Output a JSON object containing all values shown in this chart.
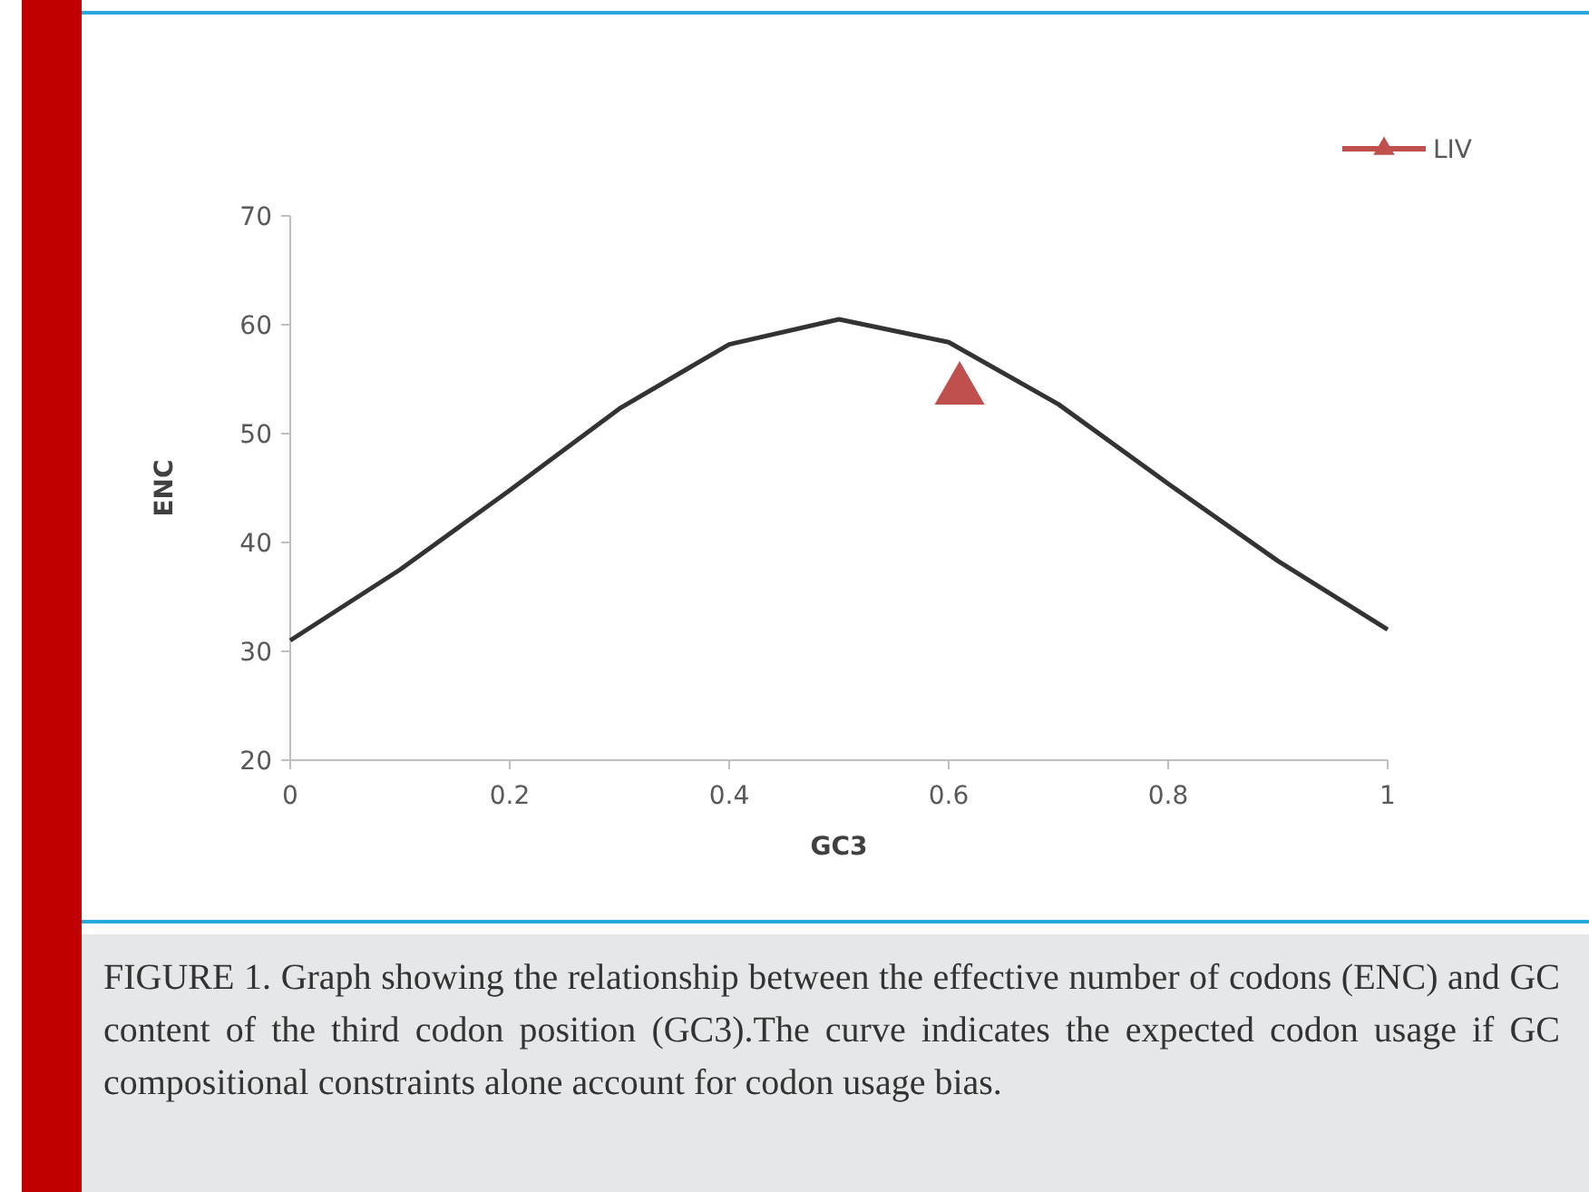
{
  "chart_data": {
    "type": "line",
    "xlabel": "GC3",
    "ylabel": "ENC",
    "xlim": [
      0,
      1
    ],
    "xticks": [
      0,
      0.2,
      0.4,
      0.6,
      0.8,
      1
    ],
    "ylim": [
      20,
      70
    ],
    "yticks": [
      20,
      30,
      40,
      50,
      60,
      70
    ],
    "series": [
      {
        "color": "#333333",
        "marker": "none",
        "x": [
          0,
          0.1,
          0.2,
          0.3,
          0.4,
          0.5,
          0.6,
          0.7,
          0.8,
          0.9,
          1
        ],
        "values": [
          31,
          37.5,
          44.8,
          52.3,
          58.2,
          60.5,
          58.4,
          52.7,
          45.4,
          38.3,
          32
        ]
      },
      {
        "type": "scatter",
        "name": "LIV",
        "color": "#c0504d",
        "marker": "triangle",
        "x": [
          0.61
        ],
        "values": [
          54
        ]
      }
    ],
    "legend": "top right",
    "grid": false,
    "annotations": [
      "FIGURE 1. Graph showing the relationship between the effective number of codons (ENC) and GC content of the third codon position (GC3).The curve indicates the expected codon usage if GC compositional constraints alone account for codon usage bias."
    ]
  }
}
